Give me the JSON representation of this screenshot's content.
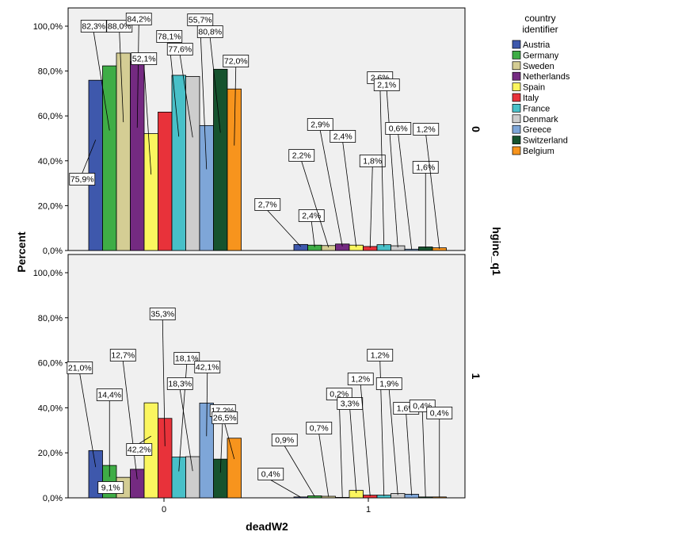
{
  "chart_data": {
    "type": "bar",
    "xlabel": "deadW2",
    "ylabel": "Percent",
    "panel_label": "hginc_q1",
    "ylim": [
      0,
      100
    ],
    "y_ticks": [
      "0,0%",
      "20,0%",
      "40,0%",
      "60,0%",
      "80,0%",
      "100,0%"
    ],
    "categories": [
      "0",
      "1"
    ],
    "legend": {
      "title": "country identifier",
      "position": "right"
    },
    "colors": {
      "Austria": "#3e58ac",
      "Germany": "#3fad46",
      "Sweden": "#d4cd94",
      "Netherlands": "#742a81",
      "Spain": "#fbf65f",
      "Italy": "#e8323a",
      "France": "#48c0c8",
      "Denmark": "#cdcdcd",
      "Greece": "#7ea6d8",
      "Switzerland": "#16532e",
      "Belgium": "#f7941d"
    },
    "series_names": [
      "Austria",
      "Germany",
      "Sweden",
      "Netherlands",
      "Spain",
      "Italy",
      "France",
      "Denmark",
      "Greece",
      "Switzerland",
      "Belgium"
    ],
    "panels": [
      {
        "name": "0",
        "values": {
          "0": [
            75.9,
            82.3,
            88.0,
            84.2,
            52.1,
            61.7,
            78.1,
            77.6,
            55.7,
            80.8,
            72.0
          ],
          "1": [
            2.7,
            2.4,
            2.2,
            2.9,
            2.4,
            1.8,
            2.6,
            2.1,
            0.6,
            1.6,
            1.2
          ]
        },
        "labels": {
          "0": [
            "75,9%",
            "82,3%",
            "88,0%",
            "84,2%",
            "52,1%",
            null,
            "78,1%",
            "77,6%",
            "55,7%",
            "80,8%",
            "72,0%"
          ],
          "1": [
            "2,7%",
            "2,4%",
            "2,2%",
            "2,9%",
            "2,4%",
            "1,8%",
            "2,6%",
            "2,1%",
            "0,6%",
            "1,6%",
            "1,2%"
          ]
        }
      },
      {
        "name": "1",
        "values": {
          "0": [
            21.0,
            14.4,
            9.1,
            12.7,
            42.2,
            35.3,
            18.1,
            18.3,
            42.1,
            17.2,
            26.5
          ],
          "1": [
            0.4,
            0.9,
            0.7,
            0.2,
            3.3,
            1.2,
            1.2,
            1.9,
            1.6,
            0.4,
            0.4
          ]
        },
        "labels": {
          "0": [
            "21,0%",
            "14,4%",
            "9,1%",
            "12,7%",
            "42,2%",
            "35,3%",
            "18,1%",
            "18,3%",
            "42,1%",
            "17,2%",
            "26,5%"
          ],
          "1": [
            "0,4%",
            "0,9%",
            "0,7%",
            "0,2%",
            "3,3%",
            "1,2%",
            "1,2%",
            "1,9%",
            "1,6%",
            "0,4%",
            "0,4%"
          ]
        }
      }
    ]
  }
}
